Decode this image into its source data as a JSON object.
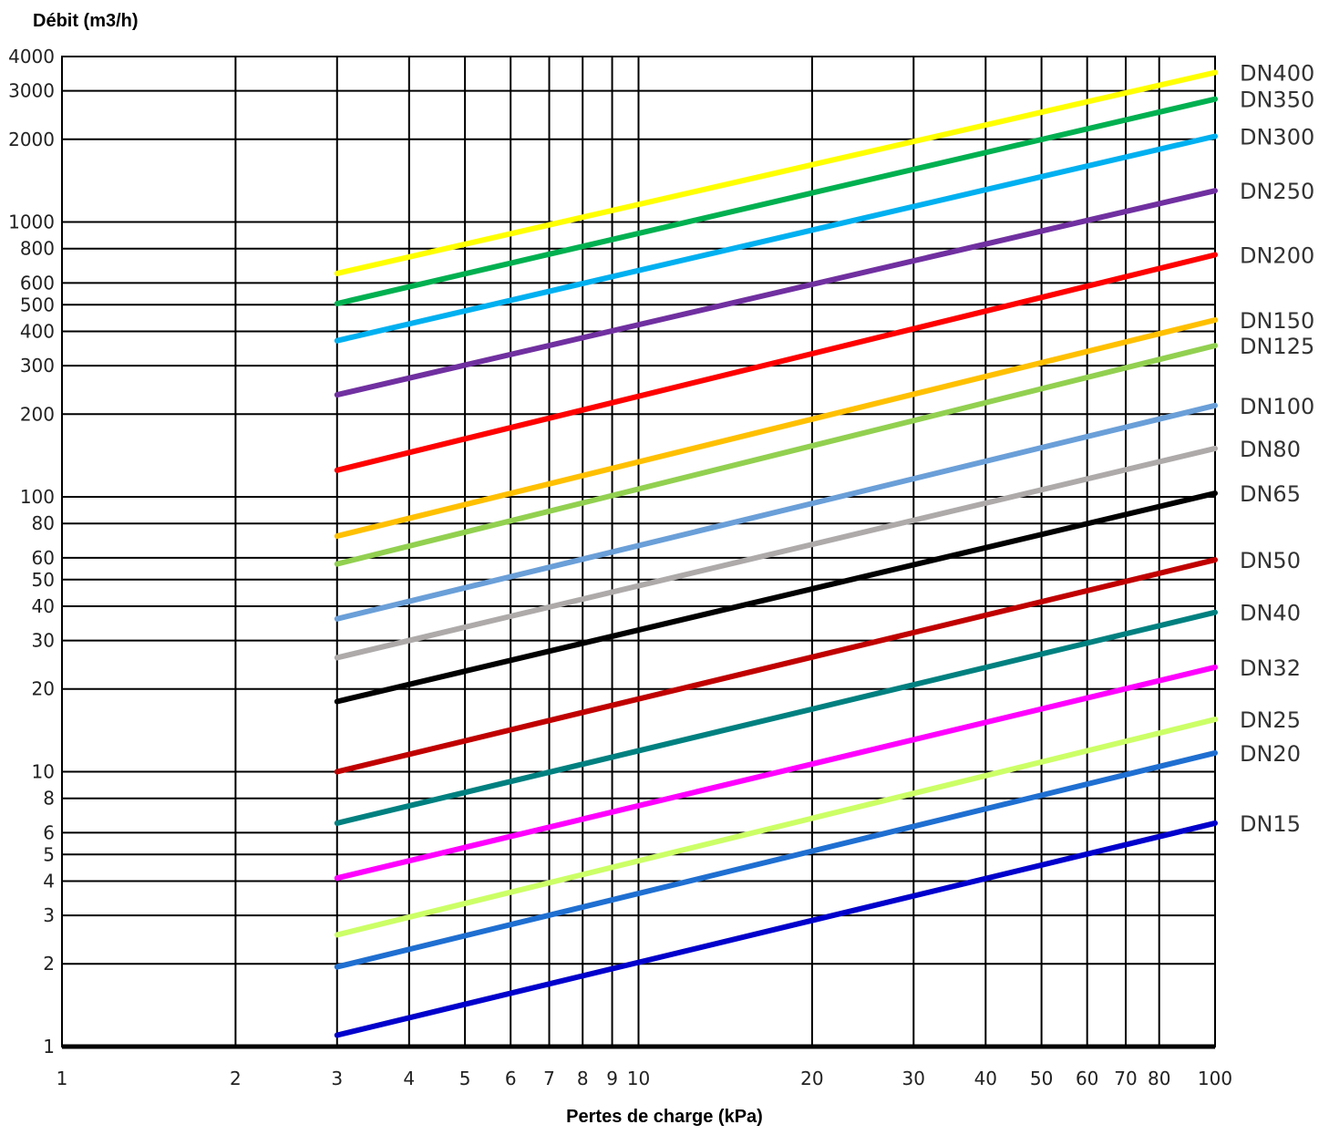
{
  "chart_data": {
    "type": "line",
    "xlabel": "Pertes de charge (kPa)",
    "ylabel": "Débit (m3/h)",
    "xscale": "log",
    "yscale": "log",
    "xlim": [
      1,
      100
    ],
    "ylim": [
      1,
      4000
    ],
    "grid": true,
    "x_ticks": [
      "1",
      "2",
      "3",
      "4",
      "5",
      "6",
      "7",
      "8",
      "9",
      "10",
      "20",
      "30",
      "40",
      "50",
      "60",
      "70",
      "80",
      "100"
    ],
    "y_ticks": [
      "1",
      "2",
      "3",
      "4",
      "5",
      "6",
      "8",
      "10",
      "20",
      "30",
      "40",
      "50",
      "60",
      "80",
      "100",
      "200",
      "300",
      "400",
      "500",
      "600",
      "800",
      "1000",
      "2000",
      "3000",
      "4000"
    ],
    "legend_position": "right",
    "series": [
      {
        "name": "DN400",
        "color": "#ffff00",
        "x": [
          3,
          100
        ],
        "y": [
          650,
          3500
        ]
      },
      {
        "name": "DN350",
        "color": "#00b050",
        "x": [
          3,
          100
        ],
        "y": [
          505,
          2800
        ]
      },
      {
        "name": "DN300",
        "color": "#00b0f0",
        "x": [
          3,
          100
        ],
        "y": [
          370,
          2050
        ]
      },
      {
        "name": "DN250",
        "color": "#7030a0",
        "x": [
          3,
          100
        ],
        "y": [
          235,
          1300
        ]
      },
      {
        "name": "DN200",
        "color": "#ff0000",
        "x": [
          3,
          100
        ],
        "y": [
          125,
          760
        ]
      },
      {
        "name": "DN150",
        "color": "#ffc000",
        "x": [
          3,
          100
        ],
        "y": [
          72,
          440
        ]
      },
      {
        "name": "DN125",
        "color": "#92d050",
        "x": [
          3,
          100
        ],
        "y": [
          57,
          355
        ]
      },
      {
        "name": "DN100",
        "color": "#6a9fd8",
        "x": [
          3,
          100
        ],
        "y": [
          36,
          215
        ]
      },
      {
        "name": "DN80",
        "color": "#aeaaaa",
        "x": [
          3,
          100
        ],
        "y": [
          26,
          150
        ]
      },
      {
        "name": "DN65",
        "color": "#000000",
        "x": [
          3,
          100
        ],
        "y": [
          18,
          103
        ]
      },
      {
        "name": "DN50",
        "color": "#c00000",
        "x": [
          3,
          100
        ],
        "y": [
          10,
          59
        ]
      },
      {
        "name": "DN40",
        "color": "#008080",
        "x": [
          3,
          100
        ],
        "y": [
          6.5,
          38
        ]
      },
      {
        "name": "DN32",
        "color": "#ff00ff",
        "x": [
          3,
          100
        ],
        "y": [
          4.1,
          24
        ]
      },
      {
        "name": "DN25",
        "color": "#ccff66",
        "x": [
          3,
          100
        ],
        "y": [
          2.55,
          15.5
        ]
      },
      {
        "name": "DN20",
        "color": "#1f6fd1",
        "x": [
          3,
          100
        ],
        "y": [
          1.95,
          11.7
        ]
      },
      {
        "name": "DN15",
        "color": "#0000cc",
        "x": [
          3,
          100
        ],
        "y": [
          1.1,
          6.5
        ]
      }
    ]
  }
}
